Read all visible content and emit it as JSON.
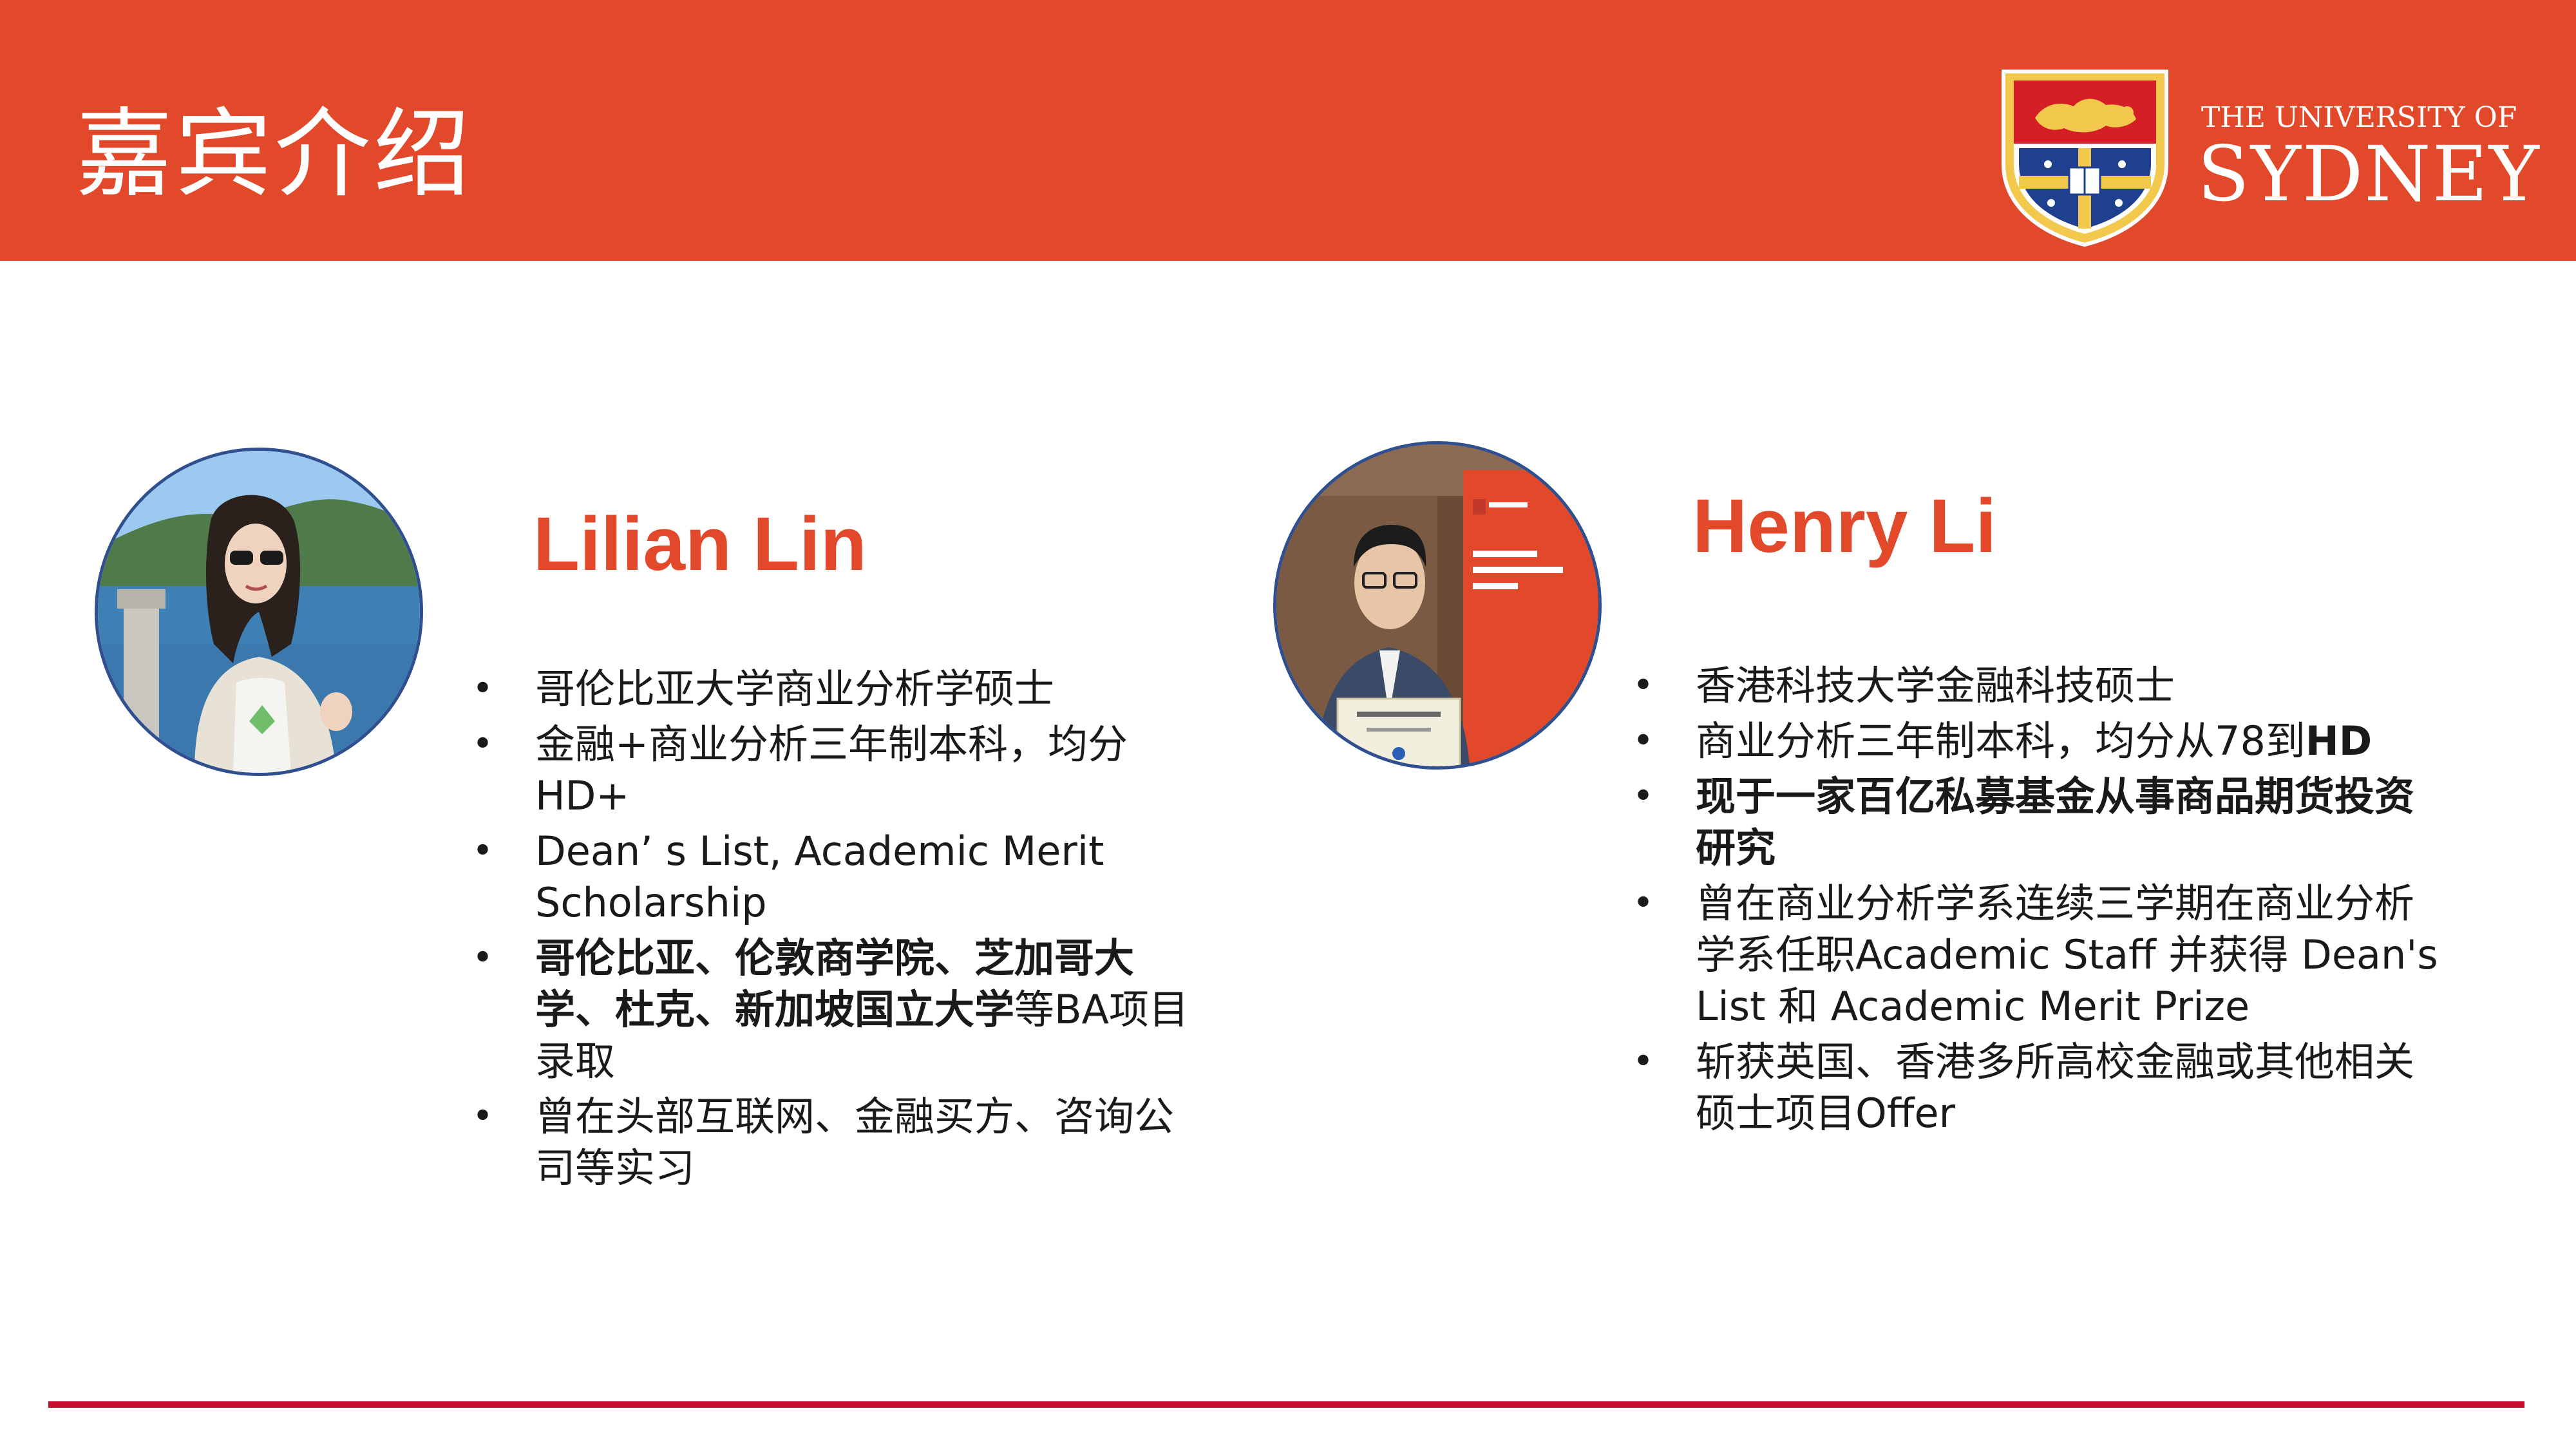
{
  "header": {
    "title": "嘉宾介绍"
  },
  "logo": {
    "line1": "THE UNIVERSITY OF",
    "line2": "SYDNEY"
  },
  "colors": {
    "banner": "#e2492a",
    "name": "#e2492a",
    "bottom_rule": "#c8102e"
  },
  "guests": [
    {
      "name": "Lilian Lin",
      "bullets": [
        {
          "parts": [
            {
              "text": "哥伦比亚大学商业分析学硕士",
              "bold": false
            }
          ]
        },
        {
          "parts": [
            {
              "text": "金融+商业分析三年制本科，均分HD+",
              "bold": false
            }
          ]
        },
        {
          "parts": [
            {
              "text": "Dean’ s List, Academic Merit Scholarship",
              "bold": false
            }
          ]
        },
        {
          "parts": [
            {
              "text": "哥伦比亚、伦敦商学院、芝加哥大学、杜克、新加坡国立大学",
              "bold": true
            },
            {
              "text": "等BA项目录取",
              "bold": false
            }
          ]
        },
        {
          "parts": [
            {
              "text": "曾在头部互联网、金融买方、咨询公司等实习",
              "bold": false
            }
          ]
        }
      ]
    },
    {
      "name": "Henry Li",
      "bullets": [
        {
          "parts": [
            {
              "text": "香港科技大学金融科技硕士",
              "bold": false
            }
          ]
        },
        {
          "parts": [
            {
              "text": "商业分析三年制本科，均分从78到",
              "bold": false
            },
            {
              "text": "HD",
              "bold": true
            }
          ]
        },
        {
          "parts": [
            {
              "text": "现于一家百亿私募基金从事商品期货投资研究",
              "bold": true
            }
          ]
        },
        {
          "parts": [
            {
              "text": "曾在商业分析学系连续三学期在商业分析学系任职Academic Staff 并获得 Dean's List 和 Academic Merit Prize",
              "bold": false
            }
          ]
        },
        {
          "parts": [
            {
              "text": "斩获英国、香港多所高校金融或其他相关硕士项目Offer",
              "bold": false
            }
          ]
        }
      ]
    }
  ]
}
